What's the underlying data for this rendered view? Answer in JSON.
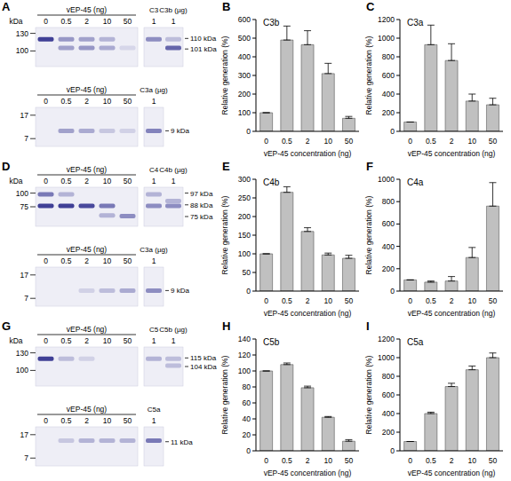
{
  "chart_data": [
    {
      "type": "bar",
      "panel": "B",
      "title": "C3b",
      "x_label": "vEP-45 concentration (ng)",
      "y_label": "Relative generation (%)",
      "categories": [
        "0",
        "0.5",
        "2",
        "10",
        "50"
      ],
      "values": [
        100,
        490,
        465,
        310,
        70
      ],
      "errors": [
        0,
        75,
        75,
        55,
        10
      ],
      "color": "#c0c0c0",
      "ylim": [
        0,
        600
      ],
      "yticks": [
        0,
        100,
        200,
        300,
        400,
        500,
        600
      ]
    },
    {
      "type": "bar",
      "panel": "C",
      "title": "C3a",
      "x_label": "vEP-45 concentration (ng)",
      "y_label": "Relative generation (%)",
      "categories": [
        "0",
        "0.5",
        "2",
        "10",
        "50"
      ],
      "values": [
        100,
        930,
        760,
        325,
        285
      ],
      "errors": [
        0,
        210,
        180,
        75,
        70
      ],
      "color": "#c0c0c0",
      "ylim": [
        0,
        1200
      ],
      "yticks": [
        0,
        200,
        400,
        600,
        800,
        1000,
        1200
      ]
    },
    {
      "type": "bar",
      "panel": "E",
      "title": "C4b",
      "x_label": "vEP-45 concentration (ng)",
      "y_label": "Relative generation (%)",
      "categories": [
        "0",
        "0.5",
        "2",
        "10",
        "50"
      ],
      "values": [
        100,
        265,
        160,
        97,
        88
      ],
      "errors": [
        0,
        15,
        10,
        5,
        8
      ],
      "color": "#c0c0c0",
      "ylim": [
        0,
        300
      ],
      "yticks": [
        0,
        50,
        100,
        150,
        200,
        250,
        300
      ]
    },
    {
      "type": "bar",
      "panel": "F",
      "title": "C4a",
      "x_label": "vEP-45 concentration (ng)",
      "y_label": "Relative generation (%)",
      "categories": [
        "0",
        "0.5",
        "2",
        "10",
        "50"
      ],
      "values": [
        100,
        80,
        90,
        300,
        760
      ],
      "errors": [
        0,
        10,
        40,
        90,
        210
      ],
      "color": "#c0c0c0",
      "ylim": [
        0,
        1000
      ],
      "yticks": [
        0,
        200,
        400,
        600,
        800,
        1000
      ]
    },
    {
      "type": "bar",
      "panel": "H",
      "title": "C5b",
      "x_label": "vEP-45 concentration (ng)",
      "y_label": "Relative generation (%)",
      "categories": [
        "0",
        "0.5",
        "2",
        "10",
        "50"
      ],
      "values": [
        100,
        108,
        79,
        42,
        12
      ],
      "errors": [
        0,
        2,
        2,
        1,
        2
      ],
      "color": "#c0c0c0",
      "ylim": [
        0,
        140
      ],
      "yticks": [
        0,
        20,
        40,
        60,
        80,
        100,
        120,
        140
      ]
    },
    {
      "type": "bar",
      "panel": "I",
      "title": "C5a",
      "x_label": "vEP-45 concentration (ng)",
      "y_label": "Relative generation (%)",
      "categories": [
        "0",
        "0.5",
        "2",
        "10",
        "50"
      ],
      "values": [
        100,
        400,
        690,
        870,
        1000
      ],
      "errors": [
        0,
        15,
        35,
        40,
        50
      ],
      "color": "#c0c0c0",
      "ylim": [
        0,
        1200
      ],
      "yticks": [
        0,
        200,
        400,
        600,
        800,
        1000,
        1200
      ]
    }
  ],
  "gels": [
    {
      "panel": "A",
      "blots": [
        {
          "header": "vEP-45 (ng)",
          "lanes": [
            "0",
            "0.5",
            "2",
            "10",
            "50"
          ],
          "controls": [
            {
              "name": "C3",
              "amount": "1"
            },
            {
              "name": "C3b (µg)",
              "amount": "1"
            }
          ],
          "marker_unit": "kDa",
          "markers": [
            130,
            100
          ],
          "band_labels": [
            "110 kDa",
            "101 kDa"
          ]
        },
        {
          "header": "vEP-45 (ng)",
          "lanes": [
            "0",
            "0.5",
            "2",
            "10",
            "50"
          ],
          "controls": [
            {
              "name": "C3a (µg)",
              "amount": "1"
            }
          ],
          "markers": [
            17,
            7
          ],
          "band_labels": [
            "9 kDa"
          ]
        }
      ]
    },
    {
      "panel": "D",
      "blots": [
        {
          "header": "vEP-45 (ng)",
          "lanes": [
            "0",
            "0.5",
            "2",
            "10",
            "50"
          ],
          "controls": [
            {
              "name": "C4",
              "amount": "1"
            },
            {
              "name": "C4b (µg)",
              "amount": "1"
            }
          ],
          "marker_unit": "kDa",
          "markers": [
            100,
            75
          ],
          "band_labels": [
            "97 kDa",
            "88 kDa",
            "75 kDa"
          ]
        },
        {
          "header": "vEP-45 (ng)",
          "lanes": [
            "0",
            "0.5",
            "2",
            "10",
            "50"
          ],
          "controls": [
            {
              "name": "C3a (µg)",
              "amount": "1"
            }
          ],
          "markers": [
            17,
            7
          ],
          "band_labels": [
            "9 kDa"
          ]
        }
      ]
    },
    {
      "panel": "G",
      "blots": [
        {
          "header": "vEP-45 (ng)",
          "lanes": [
            "0",
            "0.5",
            "2",
            "10",
            "50"
          ],
          "controls": [
            {
              "name": "C5",
              "amount": "1"
            },
            {
              "name": "C5b (µg)",
              "amount": "1"
            }
          ],
          "marker_unit": "kDa",
          "markers": [
            130,
            100
          ],
          "band_labels": [
            "115 kDa",
            "104 kDa"
          ]
        },
        {
          "header": "vEP-45 (ng)",
          "lanes": [
            "0",
            "0.5",
            "2",
            "10",
            "50"
          ],
          "controls": [
            {
              "name": "C5a",
              "amount": "1"
            }
          ],
          "markers": [
            17,
            7
          ],
          "band_labels": [
            "11 kDa"
          ]
        }
      ]
    }
  ]
}
